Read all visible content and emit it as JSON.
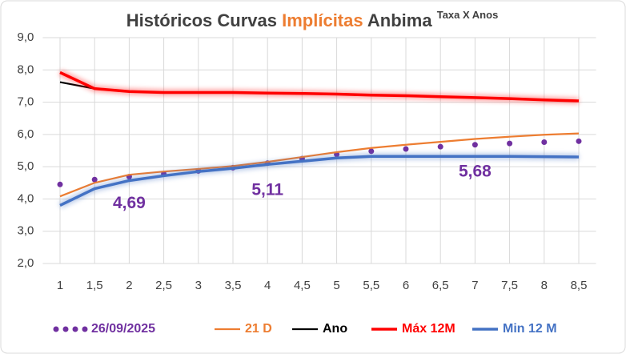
{
  "chart_data": {
    "type": "line",
    "title": "Históricos Curvas",
    "title_highlight": "Implícitas",
    "title_end": "Anbima",
    "subtitle": "Taxa X Anos",
    "x": [
      1,
      1.5,
      2,
      2.5,
      3,
      3.5,
      4,
      4.5,
      5,
      5.5,
      6,
      6.5,
      7,
      7.5,
      8,
      8.5
    ],
    "xlim": [
      0.75,
      8.75
    ],
    "xticks": [
      1,
      {
        "value": 1.5,
        "label": "1,5"
      },
      2,
      {
        "value": 2.5,
        "label": "2,5"
      },
      3,
      {
        "value": 3.5,
        "label": "3,5"
      },
      4,
      {
        "value": 4.5,
        "label": "4,5"
      },
      5,
      {
        "value": 5.5,
        "label": "5,5"
      },
      6,
      {
        "value": 6.5,
        "label": "6,5"
      },
      7,
      {
        "value": 7.5,
        "label": "7,5"
      },
      8,
      {
        "value": 8.5,
        "label": "8,5"
      }
    ],
    "ylim": [
      2,
      9
    ],
    "yticks": [
      {
        "value": 2,
        "label": "2,0"
      },
      {
        "value": 3,
        "label": "3,0"
      },
      {
        "value": 4,
        "label": "4,0"
      },
      {
        "value": 5,
        "label": "5,0"
      },
      {
        "value": 6,
        "label": "6,0"
      },
      {
        "value": 7,
        "label": "7,0"
      },
      {
        "value": 8,
        "label": "8,0"
      },
      {
        "value": 9,
        "label": "9,0"
      }
    ],
    "grid": true,
    "legend": "bottom",
    "series": [
      {
        "name": "26/09/2025",
        "color": "#7030a0",
        "style": "dotted",
        "values": [
          4.45,
          4.6,
          4.69,
          4.78,
          4.87,
          4.97,
          5.11,
          5.25,
          5.38,
          5.48,
          5.55,
          5.62,
          5.68,
          5.72,
          5.76,
          5.79
        ],
        "value_labels": [
          null,
          null,
          "4,69",
          null,
          null,
          null,
          "5,11",
          null,
          null,
          null,
          null,
          null,
          "5,68",
          null,
          null,
          null
        ]
      },
      {
        "name": "21 D",
        "color": "#ed7d31",
        "style": "solid",
        "values": [
          4.08,
          4.5,
          4.75,
          4.85,
          4.93,
          5.02,
          5.15,
          5.3,
          5.45,
          5.58,
          5.68,
          5.77,
          5.86,
          5.93,
          5.99,
          6.03
        ]
      },
      {
        "name": "Ano",
        "color": "#000000",
        "style": "solid",
        "values": [
          7.62,
          7.42,
          null,
          null,
          null,
          null,
          null,
          null,
          null,
          null,
          null,
          null,
          null,
          null,
          null,
          null
        ]
      },
      {
        "name": "Máx 12M",
        "color": "#ff0000",
        "style": "glow",
        "values": [
          7.92,
          7.42,
          7.33,
          7.3,
          7.3,
          7.3,
          7.28,
          7.27,
          7.25,
          7.22,
          7.2,
          7.17,
          7.14,
          7.11,
          7.07,
          7.04
        ]
      },
      {
        "name": "Min 12 M",
        "color": "#4472c4",
        "style": "glow",
        "values": [
          3.8,
          4.32,
          4.57,
          4.72,
          4.85,
          4.95,
          5.07,
          5.17,
          5.27,
          5.32,
          5.32,
          5.32,
          5.32,
          5.32,
          5.31,
          5.3
        ]
      }
    ]
  }
}
